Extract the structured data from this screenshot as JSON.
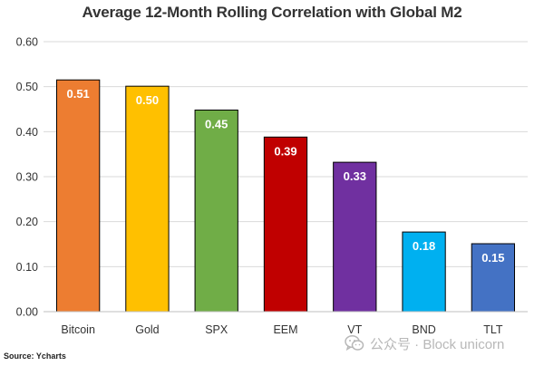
{
  "chart_data": {
    "type": "bar",
    "title": "Average 12-Month Rolling Correlation with Global M2",
    "categories": [
      "Bitcoin",
      "Gold",
      "SPX",
      "EEM",
      "VT",
      "BND",
      "TLT"
    ],
    "values": [
      0.515,
      0.501,
      0.448,
      0.388,
      0.332,
      0.177,
      0.151
    ],
    "data_labels": [
      "0.51",
      "0.50",
      "0.45",
      "0.39",
      "0.33",
      "0.18",
      "0.15"
    ],
    "bar_colors": [
      "#ED7D31",
      "#FFC000",
      "#70AD47",
      "#C00000",
      "#7030A0",
      "#00B0F0",
      "#4472C4"
    ],
    "yticks": [
      "0.00",
      "0.10",
      "0.20",
      "0.30",
      "0.40",
      "0.50",
      "0.60"
    ],
    "ylim": [
      0,
      0.6
    ],
    "grid": true,
    "legend": "none"
  },
  "source": "Source: Ycharts",
  "watermark": {
    "text": "公众号 · Block unicorn",
    "icon": "wechat-icon"
  }
}
